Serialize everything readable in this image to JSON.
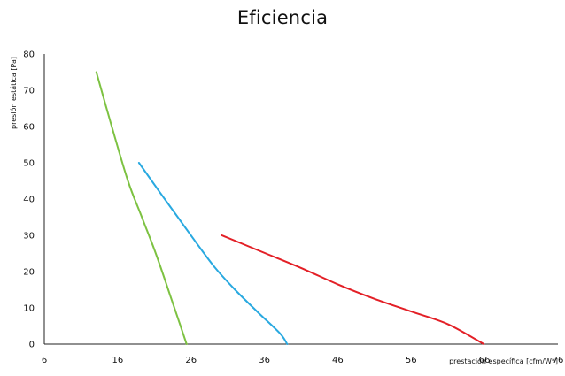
{
  "chart_data": {
    "type": "line",
    "title": "Eficiencia",
    "xlabel": "prestación específica [cfm/W*]",
    "ylabel": "presión estática [Pa]",
    "xlim": [
      6,
      76
    ],
    "ylim": [
      0,
      80
    ],
    "x_ticks": [
      "6",
      "16",
      "26",
      "36",
      "46",
      "56",
      "66",
      "76"
    ],
    "y_ticks": [
      "0",
      "10",
      "20",
      "30",
      "40",
      "50",
      "60",
      "70",
      "80"
    ],
    "grid": false,
    "series": [
      {
        "color": "#7dc242",
        "points": [
          [
            13.1,
            75
          ],
          [
            15.2,
            60
          ],
          [
            17.4,
            45
          ],
          [
            19.3,
            35
          ],
          [
            21.2,
            25
          ],
          [
            22.9,
            15
          ],
          [
            24.4,
            6
          ],
          [
            25.4,
            0
          ]
        ]
      },
      {
        "color": "#29a9e0",
        "points": [
          [
            18.9,
            50
          ],
          [
            21.7,
            42
          ],
          [
            24.2,
            35
          ],
          [
            26.7,
            28
          ],
          [
            29.3,
            21
          ],
          [
            32.0,
            15
          ],
          [
            35.0,
            9
          ],
          [
            38.1,
            3
          ],
          [
            39.1,
            0
          ]
        ]
      },
      {
        "color": "#e31f26",
        "points": [
          [
            30.2,
            30
          ],
          [
            36.2,
            25
          ],
          [
            41.0,
            21
          ],
          [
            46.0,
            16.5
          ],
          [
            51.0,
            12.5
          ],
          [
            56.0,
            9
          ],
          [
            61.0,
            5.5
          ],
          [
            65.9,
            0
          ]
        ]
      }
    ]
  }
}
